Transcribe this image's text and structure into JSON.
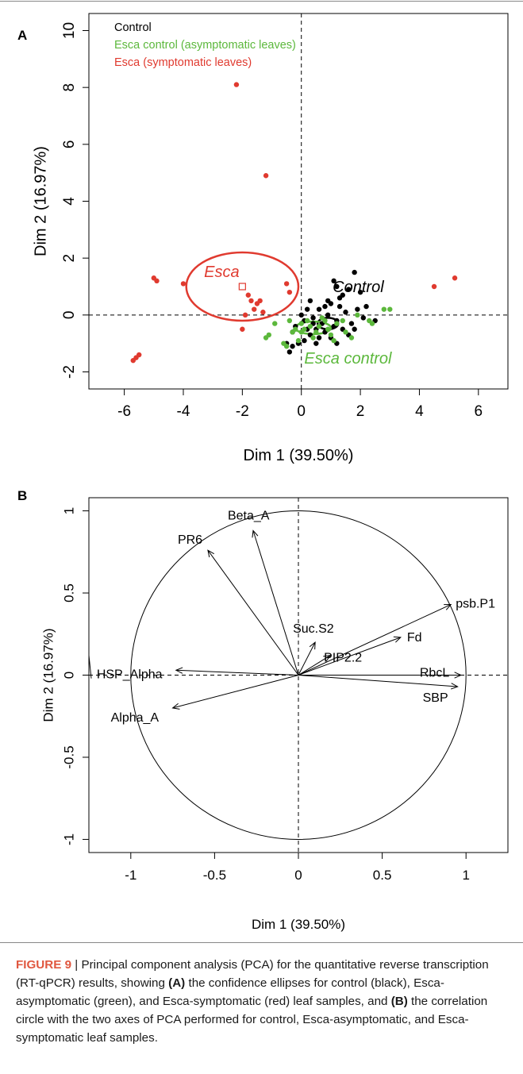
{
  "figure": {
    "caption": {
      "figure_label": "FIGURE 9",
      "separator": " | ",
      "part1": "Principal component analysis (PCA) for the quantitative reverse transcription (RT-qPCR) results, showing ",
      "ref_a": "(A)",
      "part2": " the confidence ellipses for control (black), Esca-asymptomatic (green), and Esca-symptomatic (red) leaf samples, and ",
      "ref_b": "(B)",
      "part3": " the correlation circle with the two axes of PCA performed for control, Esca-asymptomatic, and Esca-symptomatic leaf samples."
    }
  },
  "chart_data": [
    {
      "panel_label": "A",
      "type": "scatter",
      "xlabel": "Dim 1 (39.50%)",
      "ylabel": "Dim 2 (16.97%)",
      "xlim": [
        -7.2,
        7.0
      ],
      "ylim": [
        -2.6,
        10.6
      ],
      "xticks": [
        -6,
        -4,
        -2,
        0,
        2,
        4,
        6
      ],
      "yticks": [
        -2,
        0,
        2,
        4,
        6,
        8,
        10
      ],
      "reference_lines": {
        "x": 0,
        "y": 0,
        "style": "dashed"
      },
      "legend": {
        "placement": "top-left",
        "entries": [
          {
            "label": "Control",
            "color": "#000000"
          },
          {
            "label": "Esca control (asymptomatic leaves)",
            "color": "#5cb83c"
          },
          {
            "label": "Esca (symptomatic leaves)",
            "color": "#e03a2f"
          }
        ]
      },
      "series": [
        {
          "name": "Control",
          "color": "#000000",
          "points": [
            [
              1.1,
              1.2
            ],
            [
              1.2,
              1.0
            ],
            [
              1.8,
              1.5
            ],
            [
              2.0,
              0.8
            ],
            [
              1.6,
              0.9
            ],
            [
              1.3,
              0.6
            ],
            [
              1.0,
              0.4
            ],
            [
              0.8,
              0.3
            ],
            [
              0.6,
              0.2
            ],
            [
              0.2,
              0.2
            ],
            [
              0.4,
              -0.1
            ],
            [
              0.9,
              0.0
            ],
            [
              1.2,
              -0.2
            ],
            [
              1.5,
              0.1
            ],
            [
              1.7,
              -0.3
            ],
            [
              1.9,
              0.2
            ],
            [
              2.1,
              -0.1
            ],
            [
              2.5,
              -0.2
            ],
            [
              0.5,
              -0.5
            ],
            [
              0.3,
              -0.7
            ],
            [
              0.1,
              -0.9
            ],
            [
              -0.1,
              -1.0
            ],
            [
              -0.3,
              -1.1
            ],
            [
              -0.4,
              -1.3
            ],
            [
              0.6,
              -0.8
            ],
            [
              0.8,
              -0.6
            ],
            [
              1.0,
              -0.8
            ],
            [
              1.4,
              -0.5
            ],
            [
              1.6,
              -0.7
            ],
            [
              -0.2,
              -0.4
            ],
            [
              0.0,
              0.0
            ],
            [
              0.7,
              -0.3
            ],
            [
              1.1,
              -0.4
            ],
            [
              0.2,
              -0.5
            ],
            [
              0.4,
              -0.3
            ],
            [
              1.3,
              0.3
            ],
            [
              1.8,
              -0.5
            ],
            [
              -0.5,
              -1.0
            ],
            [
              0.3,
              0.5
            ],
            [
              0.9,
              0.5
            ],
            [
              1.4,
              0.7
            ],
            [
              0.1,
              -0.2
            ],
            [
              0.5,
              -1.0
            ],
            [
              1.2,
              -1.0
            ],
            [
              2.2,
              0.3
            ],
            [
              -0.3,
              -0.6
            ]
          ]
        },
        {
          "name": "Esca control (asymptomatic leaves)",
          "color": "#5cb83c",
          "points": [
            [
              -1.2,
              -0.8
            ],
            [
              -1.1,
              -0.7
            ],
            [
              -0.9,
              -0.3
            ],
            [
              -0.6,
              -1.0
            ],
            [
              -0.5,
              -1.1
            ],
            [
              -0.3,
              -0.6
            ],
            [
              -0.2,
              -0.5
            ],
            [
              0.0,
              -0.3
            ],
            [
              0.1,
              -0.5
            ],
            [
              0.2,
              -0.2
            ],
            [
              0.3,
              -0.4
            ],
            [
              0.5,
              -0.6
            ],
            [
              0.6,
              -0.4
            ],
            [
              0.8,
              -0.2
            ],
            [
              0.9,
              -0.5
            ],
            [
              1.0,
              -0.7
            ],
            [
              1.2,
              -0.3
            ],
            [
              1.4,
              -0.2
            ],
            [
              1.5,
              -0.6
            ],
            [
              1.7,
              -0.8
            ],
            [
              1.9,
              0.0
            ],
            [
              2.3,
              -0.2
            ],
            [
              2.4,
              -0.3
            ],
            [
              2.8,
              0.2
            ],
            [
              3.0,
              0.2
            ],
            [
              0.4,
              -0.8
            ],
            [
              -0.1,
              -0.9
            ],
            [
              1.1,
              -0.9
            ],
            [
              0.7,
              -0.1
            ],
            [
              0.0,
              -0.6
            ],
            [
              -0.4,
              -0.2
            ]
          ]
        },
        {
          "name": "Esca (symptomatic leaves)",
          "color": "#e03a2f",
          "points": [
            [
              -2.2,
              8.1
            ],
            [
              -1.2,
              4.9
            ],
            [
              -5.0,
              1.3
            ],
            [
              -4.9,
              1.2
            ],
            [
              -4.0,
              1.1
            ],
            [
              -1.8,
              0.7
            ],
            [
              -1.7,
              0.5
            ],
            [
              -1.5,
              0.4
            ],
            [
              -1.4,
              0.5
            ],
            [
              -1.6,
              0.2
            ],
            [
              -1.9,
              0.0
            ],
            [
              -2.0,
              -0.5
            ],
            [
              -1.3,
              0.1
            ],
            [
              -0.5,
              1.1
            ],
            [
              -0.4,
              0.8
            ],
            [
              -5.7,
              -1.6
            ],
            [
              -5.6,
              -1.5
            ],
            [
              -5.5,
              -1.4
            ],
            [
              4.5,
              1.0
            ],
            [
              5.2,
              1.3
            ]
          ]
        }
      ],
      "ellipses": [
        {
          "label": "Esca",
          "color": "#e03a2f",
          "center": [
            -2.0,
            1.0
          ],
          "semi_axes": [
            1.9,
            1.2
          ],
          "label_position": "above-left of center"
        },
        {
          "label": "Control",
          "color": "#000000",
          "center": [
            0.9,
            -0.3
          ],
          "semi_axes": [
            0.35,
            0.2
          ],
          "label_position": "upper-right"
        },
        {
          "label": "Esca control",
          "color": "#5cb83c",
          "center": [
            0.4,
            -0.45
          ],
          "semi_axes": [
            0.6,
            0.22
          ],
          "label_position": "lower-right"
        }
      ]
    },
    {
      "panel_label": "B",
      "type": "scatter",
      "subtype": "correlation circle",
      "xlabel": "Dim 1 (39.50%)",
      "ylabel": "Dim 2 (16.97%)",
      "xlim": [
        -1.25,
        1.25
      ],
      "ylim": [
        -1.08,
        1.08
      ],
      "xticks": [
        -1.0,
        -0.5,
        0.0,
        0.5,
        1.0
      ],
      "yticks": [
        -1.0,
        -0.5,
        0.0,
        0.5,
        1.0
      ],
      "reference_lines": {
        "x": 0,
        "y": 0,
        "style": "dashed"
      },
      "circle_radius": 1.0,
      "variables": [
        {
          "name": "Beta_A",
          "x": -0.27,
          "y": 0.88
        },
        {
          "name": "PR6",
          "x": -0.54,
          "y": 0.76
        },
        {
          "name": "psb.P1",
          "x": 0.91,
          "y": 0.43
        },
        {
          "name": "Fd",
          "x": 0.61,
          "y": 0.23
        },
        {
          "name": "Suc.S2",
          "x": 0.1,
          "y": 0.2
        },
        {
          "name": "PIP2.2",
          "x": 0.19,
          "y": 0.12
        },
        {
          "name": "RbcL",
          "x": 0.97,
          "y": 0.0
        },
        {
          "name": "SBP",
          "x": 0.95,
          "y": -0.07
        },
        {
          "name": "HSP_Alpha",
          "x": -0.73,
          "y": 0.03
        },
        {
          "name": "Alpha_A",
          "x": -0.75,
          "y": -0.2
        }
      ]
    }
  ]
}
